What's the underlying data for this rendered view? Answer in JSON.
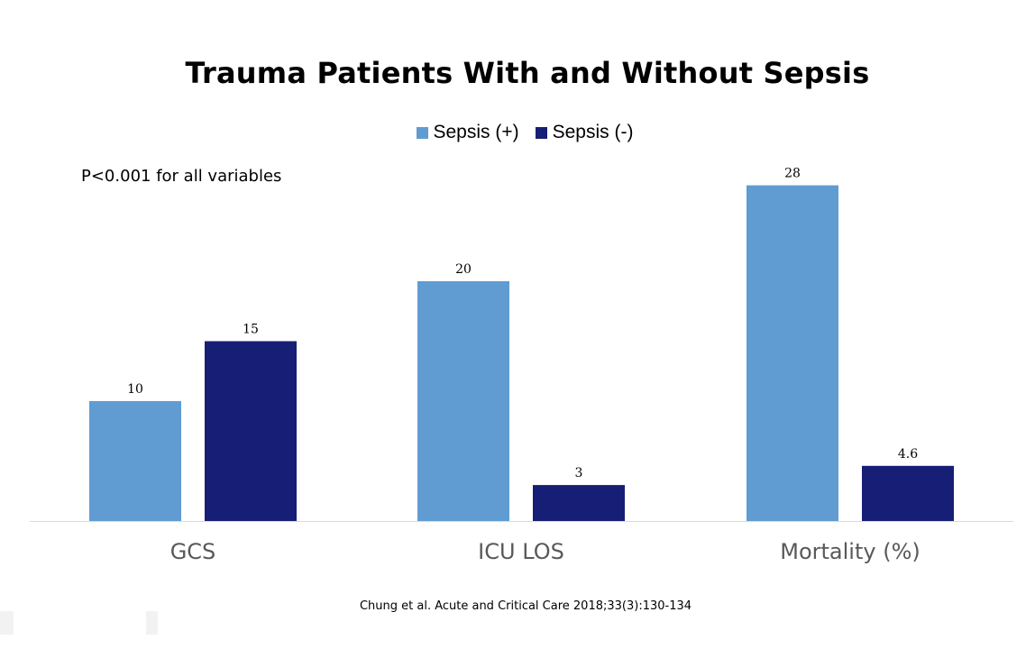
{
  "chart_data": {
    "type": "bar",
    "title": "Trauma Patients With and Without Sepsis",
    "categories": [
      "GCS",
      "ICU LOS",
      "Mortality (%)"
    ],
    "series": [
      {
        "name": "Sepsis (+)",
        "values": [
          10,
          20,
          28
        ],
        "labels": [
          "10",
          "20",
          "28"
        ],
        "color": "#609cd1"
      },
      {
        "name": "Sepsis (-)",
        "values": [
          15,
          3,
          4.6
        ],
        "labels": [
          "15",
          "3",
          "4.6"
        ],
        "color": "#171e75"
      }
    ],
    "ylim": [
      0,
      30
    ],
    "grid": false,
    "legend_position": "top-center",
    "annotation": "P<0.001 for all variables",
    "source": "Chung et al. Acute and Critical Care 2018;33(3):130-134"
  }
}
